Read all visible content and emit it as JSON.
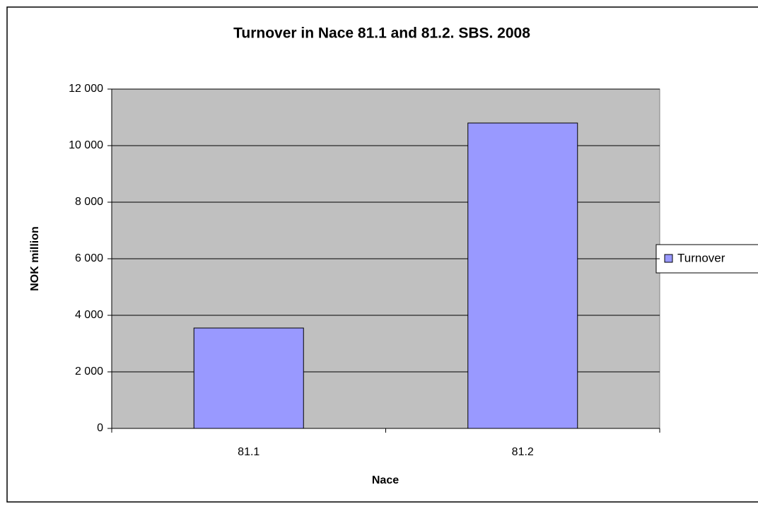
{
  "chart_data": {
    "type": "bar",
    "title": "Turnover in Nace 81.1 and 81.2. SBS. 2008",
    "x_label": "Nace",
    "y_label": "NOK million",
    "categories": [
      "81.1",
      "81.2"
    ],
    "series": [
      {
        "name": "Turnover",
        "color": "#9999ff",
        "values": [
          3550,
          10800
        ]
      }
    ],
    "ylim": [
      0,
      12000
    ],
    "yticks": [
      0,
      {
        "value": 2000,
        "label": "2 000"
      },
      {
        "value": 4000,
        "label": "4 000"
      },
      {
        "value": 6000,
        "label": "6 000"
      },
      {
        "value": 8000,
        "label": "8 000"
      },
      {
        "value": 10000,
        "label": "10 000"
      },
      {
        "value": 12000,
        "label": "12 000"
      }
    ],
    "grid": true,
    "legend": "right"
  }
}
